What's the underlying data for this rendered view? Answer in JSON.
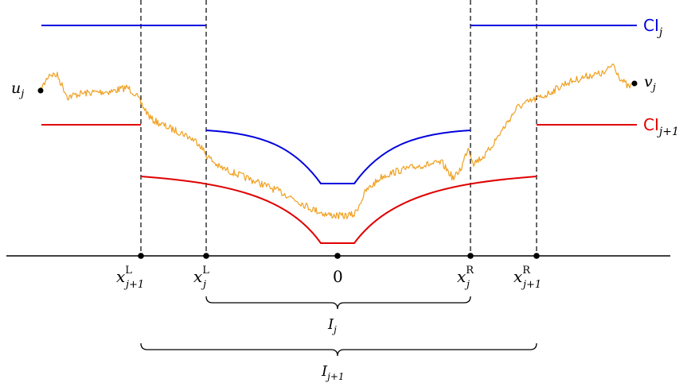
{
  "colors": {
    "blue": "#0000dd",
    "red": "#e00000",
    "path": "#f0a020",
    "axis": "#000000"
  },
  "curve_labels": {
    "top": {
      "base": "CI",
      "sub": "j"
    },
    "bottom": {
      "base": "CI",
      "sub": "j+1"
    }
  },
  "endpoints": {
    "left": {
      "base": "u",
      "sub": "j"
    },
    "right": {
      "base": "v",
      "sub": "j"
    }
  },
  "axis_labels": {
    "x_left_outer": {
      "base": "x",
      "sup": "L",
      "sub": "j+1"
    },
    "x_left_inner": {
      "base": "x",
      "sup": "L",
      "sub": "j"
    },
    "origin": "0",
    "x_right_inner": {
      "base": "x",
      "sup": "R",
      "sub": "j"
    },
    "x_right_outer": {
      "base": "x",
      "sup": "R",
      "sub": "j+1"
    }
  },
  "intervals": {
    "inner": {
      "base": "I",
      "sub": "j"
    },
    "outer": {
      "base": "I",
      "sub": "j+1"
    }
  }
}
